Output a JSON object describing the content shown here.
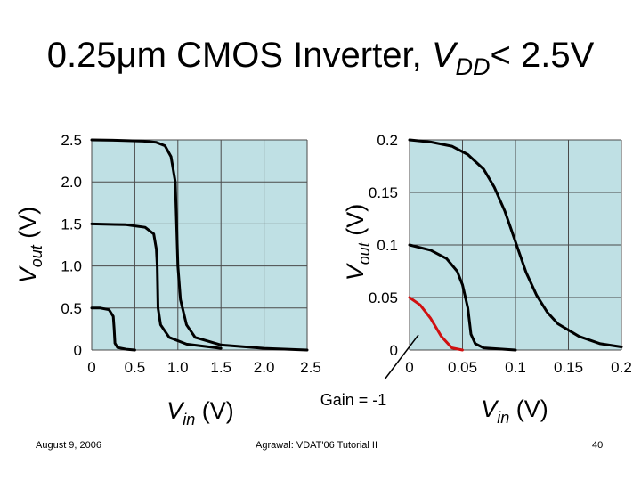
{
  "title": {
    "prefix": "0.25μm CMOS Inverter, ",
    "var": "V",
    "sub": "DD",
    "suffix": "< 2.5V"
  },
  "footer": {
    "date": "August 9, 2006",
    "center": "Agrawal: VDAT'06 Tutorial II",
    "page": "40"
  },
  "colors": {
    "plot_bg": "#bfe0e4",
    "grid": "#4a4a4a",
    "curve": "#000000",
    "gain_curve": "#d01010"
  },
  "chart_data": [
    {
      "type": "line",
      "title": "",
      "xlabel_main": "V",
      "xlabel_sub": "in",
      "xlabel_unit": " (V)",
      "ylabel_main": "V",
      "ylabel_sub": "out",
      "ylabel_unit": " (V)",
      "xlim": [
        0,
        2.5
      ],
      "ylim": [
        0,
        2.5
      ],
      "xticks": [
        0,
        0.5,
        1.0,
        1.5,
        2.0,
        2.5
      ],
      "xtick_labels": [
        "0",
        "0.5",
        "1.0",
        "1.5",
        "2.0",
        "2.5"
      ],
      "yticks": [
        0,
        0.5,
        1.0,
        1.5,
        2.0,
        2.5
      ],
      "ytick_labels": [
        "0",
        "0.5",
        "1.0",
        "1.5",
        "2.0",
        "2.5"
      ],
      "grid": true,
      "series": [
        {
          "points": [
            [
              0,
              2.5
            ],
            [
              0.3,
              2.495
            ],
            [
              0.6,
              2.485
            ],
            [
              0.75,
              2.47
            ],
            [
              0.85,
              2.43
            ],
            [
              0.92,
              2.3
            ],
            [
              0.97,
              2.0
            ],
            [
              1.0,
              1.0
            ],
            [
              1.03,
              0.6
            ],
            [
              1.1,
              0.3
            ],
            [
              1.2,
              0.15
            ],
            [
              1.5,
              0.06
            ],
            [
              2.0,
              0.02
            ],
            [
              2.5,
              0.0
            ]
          ]
        },
        {
          "points": [
            [
              0,
              1.5
            ],
            [
              0.4,
              1.49
            ],
            [
              0.62,
              1.46
            ],
            [
              0.72,
              1.38
            ],
            [
              0.75,
              1.2
            ],
            [
              0.76,
              1.0
            ],
            [
              0.77,
              0.5
            ],
            [
              0.8,
              0.3
            ],
            [
              0.9,
              0.15
            ],
            [
              1.1,
              0.07
            ],
            [
              1.5,
              0.02
            ]
          ]
        },
        {
          "points": [
            [
              0,
              0.5
            ],
            [
              0.1,
              0.5
            ],
            [
              0.2,
              0.48
            ],
            [
              0.25,
              0.4
            ],
            [
              0.26,
              0.25
            ],
            [
              0.27,
              0.08
            ],
            [
              0.3,
              0.03
            ],
            [
              0.4,
              0.01
            ],
            [
              0.5,
              0.0
            ]
          ]
        }
      ]
    },
    {
      "type": "line",
      "title": "",
      "xlabel_main": "V",
      "xlabel_sub": "in",
      "xlabel_unit": " (V)",
      "ylabel_main": "V",
      "ylabel_sub": "out",
      "ylabel_unit": " (V)",
      "xlim": [
        0,
        0.2
      ],
      "ylim": [
        0,
        0.2
      ],
      "xticks": [
        0,
        0.05,
        0.1,
        0.15,
        0.2
      ],
      "xtick_labels": [
        "0",
        "0.05",
        "0.1",
        "0.15",
        "0.2"
      ],
      "yticks": [
        0,
        0.05,
        0.1,
        0.15,
        0.2
      ],
      "ytick_labels": [
        "0",
        "0.05",
        "0.1",
        "0.15",
        "0.2"
      ],
      "grid": true,
      "annotation": "Gain = -1",
      "series": [
        {
          "points": [
            [
              0,
              0.2
            ],
            [
              0.02,
              0.198
            ],
            [
              0.04,
              0.194
            ],
            [
              0.055,
              0.186
            ],
            [
              0.07,
              0.172
            ],
            [
              0.08,
              0.155
            ],
            [
              0.09,
              0.132
            ],
            [
              0.1,
              0.103
            ],
            [
              0.11,
              0.074
            ],
            [
              0.12,
              0.052
            ],
            [
              0.13,
              0.036
            ],
            [
              0.14,
              0.025
            ],
            [
              0.16,
              0.013
            ],
            [
              0.18,
              0.006
            ],
            [
              0.2,
              0.003
            ]
          ]
        },
        {
          "points": [
            [
              0,
              0.1
            ],
            [
              0.02,
              0.095
            ],
            [
              0.035,
              0.087
            ],
            [
              0.045,
              0.075
            ],
            [
              0.05,
              0.062
            ],
            [
              0.055,
              0.04
            ],
            [
              0.058,
              0.015
            ],
            [
              0.062,
              0.006
            ],
            [
              0.07,
              0.002
            ],
            [
              0.1,
              0.0
            ]
          ]
        },
        {
          "name_hidden": true,
          "highlight": true,
          "points": [
            [
              0,
              0.05
            ],
            [
              0.01,
              0.043
            ],
            [
              0.02,
              0.03
            ],
            [
              0.03,
              0.013
            ],
            [
              0.04,
              0.002
            ],
            [
              0.05,
              0.0
            ]
          ]
        }
      ]
    }
  ]
}
